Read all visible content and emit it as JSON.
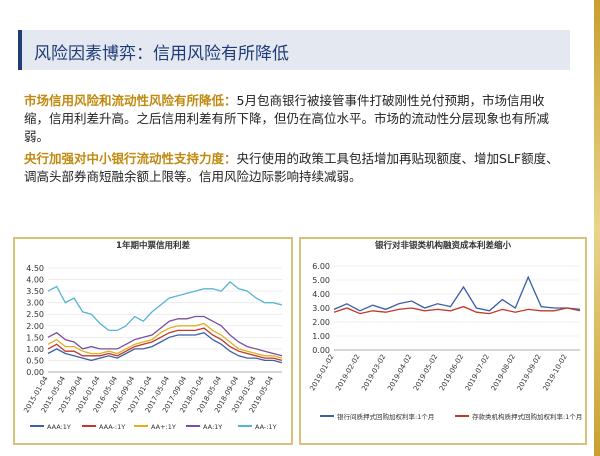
{
  "header": {
    "title": "风险因素博弈：信用风险有所降低"
  },
  "paragraphs": [
    {
      "lead": "市场信用风险和流动性风险有所降低：",
      "text": "5月包商银行被接管事件打破刚性兑付预期，市场信用收缩，信用利差升高。之后信用利差有所下降，但仍在高位水平。市场的流动性分层现象也有所减弱。"
    },
    {
      "lead": "央行加强对中小银行流动性支持力度：",
      "text": "央行使用的政策工具包括增加再贴现额度、增加SLF额度、调高头部券商短融余额上限等。信用风险边际影响持续减弱。"
    }
  ],
  "chart_data": [
    {
      "type": "line",
      "title": "1年期中票信用利差",
      "categories": [
        "2015-01-04",
        null,
        "2015-05-04",
        null,
        "2015-09-04",
        null,
        "2016-01-04",
        null,
        "2016-05-04",
        null,
        "2016-09-04",
        null,
        "2017-01-04",
        null,
        "2017-05-04",
        null,
        "2017-09-04",
        null,
        "2018-01-04",
        null,
        "2018-05-04",
        null,
        "2018-09-04",
        null,
        "2019-01-04",
        null,
        "2019-05-04",
        null
      ],
      "ylim": [
        0,
        4.5
      ],
      "yticks": [
        {
          "value": 0,
          "label": "0.00"
        },
        {
          "value": 0.5,
          "label": "0.50"
        },
        {
          "value": 1,
          "label": "1.00"
        },
        {
          "value": 1.5,
          "label": "1.50"
        },
        {
          "value": 2,
          "label": "2.00"
        },
        {
          "value": 2.5,
          "label": "2.50"
        },
        {
          "value": 3,
          "label": "3.00"
        },
        {
          "value": 3.5,
          "label": "3.50"
        },
        {
          "value": 4,
          "label": "4.00"
        },
        {
          "value": 4.5,
          "label": "4.50"
        }
      ],
      "series": [
        {
          "name": "AAA:1Y",
          "color": "#3b5fa8",
          "values": [
            0.8,
            1.0,
            0.8,
            0.7,
            0.6,
            0.5,
            0.6,
            0.7,
            0.6,
            0.8,
            1.0,
            1.0,
            1.1,
            1.3,
            1.5,
            1.6,
            1.6,
            1.6,
            1.7,
            1.4,
            1.2,
            0.9,
            0.7,
            0.6,
            0.6,
            0.5,
            0.5,
            0.4
          ]
        },
        {
          "name": "AAA-:1Y",
          "color": "#c0392b",
          "values": [
            1.0,
            1.2,
            0.9,
            0.9,
            0.7,
            0.7,
            0.7,
            0.8,
            0.7,
            0.9,
            1.1,
            1.2,
            1.3,
            1.5,
            1.7,
            1.8,
            1.8,
            1.8,
            1.9,
            1.6,
            1.4,
            1.1,
            0.9,
            0.8,
            0.7,
            0.6,
            0.6,
            0.5
          ]
        },
        {
          "name": "AA+:1Y",
          "color": "#e0b020",
          "values": [
            1.2,
            1.4,
            1.1,
            1.1,
            0.9,
            0.8,
            0.8,
            0.9,
            0.8,
            1.0,
            1.2,
            1.3,
            1.4,
            1.7,
            1.9,
            2.0,
            2.0,
            2.0,
            2.1,
            1.8,
            1.6,
            1.3,
            1.0,
            0.9,
            0.8,
            0.7,
            0.7,
            0.6
          ]
        },
        {
          "name": "AA:1Y",
          "color": "#7b4fa0",
          "values": [
            1.5,
            1.7,
            1.4,
            1.3,
            1.0,
            1.1,
            1.0,
            1.0,
            1.0,
            1.2,
            1.4,
            1.5,
            1.6,
            1.9,
            2.2,
            2.3,
            2.3,
            2.4,
            2.4,
            2.2,
            2.0,
            1.6,
            1.3,
            1.1,
            1.0,
            0.9,
            0.8,
            0.7
          ]
        },
        {
          "name": "AA-:1Y",
          "color": "#58b3d6",
          "values": [
            3.5,
            3.7,
            3.0,
            3.2,
            2.6,
            2.5,
            2.1,
            1.8,
            1.8,
            2.0,
            2.4,
            2.2,
            2.6,
            2.9,
            3.2,
            3.3,
            3.4,
            3.5,
            3.6,
            3.6,
            3.5,
            3.9,
            3.6,
            3.5,
            3.2,
            3.0,
            3.0,
            2.9
          ]
        }
      ]
    },
    {
      "type": "line",
      "title": "银行对非银类机构融资成本利差缩小",
      "categories": [
        "2019-01-02",
        null,
        "2019-02-02",
        null,
        "2019-03-02",
        null,
        "2019-04-02",
        null,
        "2019-05-02",
        null,
        "2019-06-02",
        null,
        "2019-07-02",
        null,
        "2019-08-02",
        null,
        "2019-09-02",
        null,
        "2019-10-02",
        null
      ],
      "ylim": [
        0,
        6
      ],
      "yticks": [
        {
          "value": 0,
          "label": "0.00"
        },
        {
          "value": 1,
          "label": "1.00"
        },
        {
          "value": 2,
          "label": "2.00"
        },
        {
          "value": 3,
          "label": "3.00"
        },
        {
          "value": 4,
          "label": "4.00"
        },
        {
          "value": 5,
          "label": "5.00"
        },
        {
          "value": 6,
          "label": "6.00"
        }
      ],
      "series": [
        {
          "name": "银行间质押式回购加权利率:1个月",
          "color": "#3b5fa8",
          "values": [
            2.9,
            3.3,
            2.8,
            3.2,
            2.9,
            3.3,
            3.5,
            3.0,
            3.3,
            3.1,
            4.5,
            3.0,
            2.8,
            3.6,
            3.0,
            5.2,
            3.1,
            3.0,
            3.0,
            2.9
          ]
        },
        {
          "name": "存款类机构质押式回购加权利率:1个月",
          "color": "#c0392b",
          "values": [
            2.7,
            3.0,
            2.6,
            2.8,
            2.7,
            2.9,
            3.0,
            2.8,
            2.9,
            2.8,
            3.1,
            2.7,
            2.6,
            2.9,
            2.7,
            2.9,
            2.8,
            2.8,
            3.0,
            2.8
          ]
        }
      ]
    }
  ]
}
